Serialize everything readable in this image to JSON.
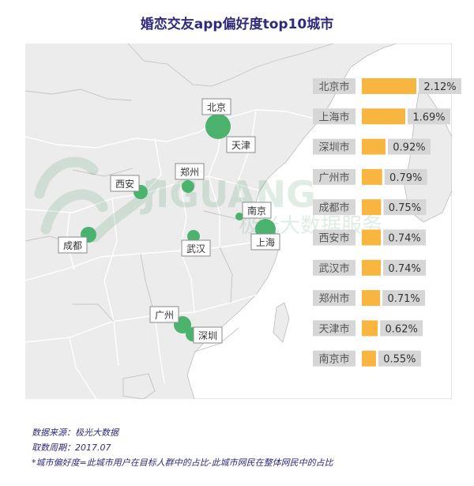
{
  "title": "婚恋交友app偏好度top10城市",
  "watermark": {
    "brand": "JIGUANG",
    "cn": "极光大数据服务"
  },
  "colors": {
    "bar": "#f8b53f",
    "dot": "#4cb36e",
    "label_bg": "#d6d6d6",
    "title": "#2f2a7c",
    "land": "#ececec",
    "sea": "#ffffff"
  },
  "chart_data": {
    "type": "bar",
    "orientation": "horizontal",
    "title": "婚恋交友app偏好度top10城市",
    "unit": "%",
    "categories": [
      "北京市",
      "上海市",
      "深圳市",
      "广州市",
      "成都市",
      "西安市",
      "武汉市",
      "郑州市",
      "天津市",
      "南京市"
    ],
    "values": [
      2.12,
      1.69,
      0.92,
      0.79,
      0.75,
      0.74,
      0.74,
      0.71,
      0.62,
      0.55
    ],
    "value_labels": [
      "2.12%",
      "1.69%",
      "0.92%",
      "0.79%",
      "0.75%",
      "0.74%",
      "0.74%",
      "0.71%",
      "0.62%",
      "0.55%"
    ],
    "xlim": [
      0,
      2.12
    ]
  },
  "map_cities": [
    {
      "name": "北京",
      "dot": "large"
    },
    {
      "name": "天津",
      "dot": "none"
    },
    {
      "name": "西安",
      "dot": "small"
    },
    {
      "name": "郑州",
      "dot": "small"
    },
    {
      "name": "南京",
      "dot": "tiny"
    },
    {
      "name": "上海",
      "dot": "large"
    },
    {
      "name": "成都",
      "dot": "small"
    },
    {
      "name": "武汉",
      "dot": "small"
    },
    {
      "name": "广州",
      "dot": "medium"
    },
    {
      "name": "深圳",
      "dot": "small"
    }
  ],
  "footer": {
    "source": "数据来源：极光大数据",
    "period": "取数周期：2017.07",
    "definition": "*城市偏好度=此城市用户在目标人群中的占比-此城市网民在整体网民中的占比"
  }
}
